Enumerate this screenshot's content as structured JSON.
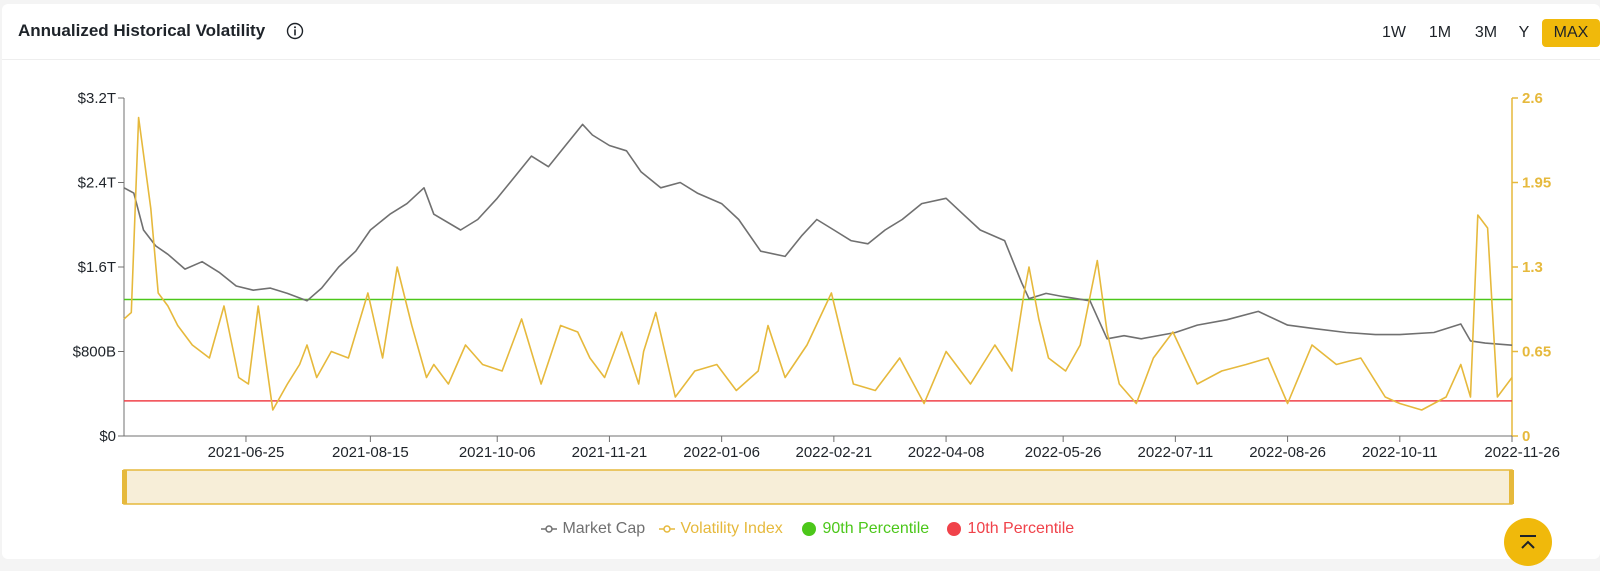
{
  "header": {
    "title": "Annualized Historical Volatility",
    "range_buttons": [
      "1W",
      "1M",
      "3M",
      "Y",
      "MAX"
    ],
    "active_range": "MAX"
  },
  "legend": [
    {
      "label": "Market Cap",
      "color": "#707070"
    },
    {
      "label": "Volatility Index",
      "color": "#e6b93c"
    },
    {
      "label": "90th Percentile",
      "color": "#4cc71a"
    },
    {
      "label": "10th Percentile",
      "color": "#f0424a"
    }
  ],
  "chart_data": {
    "type": "line",
    "x_ticks": [
      "2021-06-25",
      "2021-08-15",
      "2021-10-06",
      "2021-11-21",
      "2022-01-06",
      "2022-02-21",
      "2022-04-08",
      "2022-05-26",
      "2022-07-11",
      "2022-08-26",
      "2022-10-11",
      "2022-11-26"
    ],
    "x_range": [
      "2021-05-06",
      "2022-11-26"
    ],
    "y_left": {
      "ticks": [
        "$0",
        "$800B",
        "$1.6T",
        "$2.4T",
        "$3.2T"
      ],
      "range": [
        0,
        3.2
      ],
      "unit": "trillion USD"
    },
    "y_right": {
      "ticks": [
        "0",
        "0.65",
        "1.3",
        "1.95",
        "2.6"
      ],
      "range": [
        0,
        2.6
      ]
    },
    "thresholds": [
      {
        "name": "90th Percentile",
        "value": 1.05,
        "color": "#4cc71a"
      },
      {
        "name": "10th Percentile",
        "value": 0.27,
        "color": "#f0424a"
      }
    ],
    "series": [
      {
        "name": "Market Cap",
        "axis": "left",
        "color": "#707070",
        "x": [
          "2021-05-06",
          "2021-05-10",
          "2021-05-14",
          "2021-05-19",
          "2021-05-24",
          "2021-05-31",
          "2021-06-07",
          "2021-06-14",
          "2021-06-21",
          "2021-06-28",
          "2021-07-05",
          "2021-07-12",
          "2021-07-20",
          "2021-07-26",
          "2021-08-02",
          "2021-08-09",
          "2021-08-15",
          "2021-08-23",
          "2021-08-30",
          "2021-09-06",
          "2021-09-10",
          "2021-09-21",
          "2021-09-28",
          "2021-10-06",
          "2021-10-13",
          "2021-10-20",
          "2021-10-27",
          "2021-11-03",
          "2021-11-10",
          "2021-11-14",
          "2021-11-21",
          "2021-11-28",
          "2021-12-04",
          "2021-12-12",
          "2021-12-20",
          "2021-12-27",
          "2022-01-06",
          "2022-01-13",
          "2022-01-22",
          "2022-02-01",
          "2022-02-08",
          "2022-02-14",
          "2022-02-21",
          "2022-02-28",
          "2022-03-07",
          "2022-03-14",
          "2022-03-21",
          "2022-03-29",
          "2022-04-08",
          "2022-04-15",
          "2022-04-22",
          "2022-05-02",
          "2022-05-09",
          "2022-05-12",
          "2022-05-19",
          "2022-05-26",
          "2022-06-06",
          "2022-06-13",
          "2022-06-20",
          "2022-06-27",
          "2022-07-11",
          "2022-07-20",
          "2022-08-01",
          "2022-08-14",
          "2022-08-26",
          "2022-09-05",
          "2022-09-19",
          "2022-10-01",
          "2022-10-11",
          "2022-10-25",
          "2022-11-05",
          "2022-11-09",
          "2022-11-15",
          "2022-11-26"
        ],
        "values": [
          2.35,
          2.3,
          1.95,
          1.8,
          1.72,
          1.58,
          1.65,
          1.55,
          1.42,
          1.38,
          1.4,
          1.35,
          1.28,
          1.4,
          1.6,
          1.75,
          1.95,
          2.1,
          2.2,
          2.35,
          2.1,
          1.95,
          2.05,
          2.25,
          2.45,
          2.65,
          2.55,
          2.75,
          2.95,
          2.85,
          2.75,
          2.7,
          2.5,
          2.35,
          2.4,
          2.3,
          2.2,
          2.05,
          1.75,
          1.7,
          1.9,
          2.05,
          1.95,
          1.85,
          1.82,
          1.95,
          2.05,
          2.2,
          2.25,
          2.1,
          1.95,
          1.85,
          1.45,
          1.3,
          1.35,
          1.32,
          1.28,
          0.92,
          0.95,
          0.92,
          0.98,
          1.05,
          1.1,
          1.18,
          1.05,
          1.02,
          0.98,
          0.96,
          0.96,
          0.98,
          1.06,
          0.9,
          0.88,
          0.86
        ]
      },
      {
        "name": "Volatility Index",
        "axis": "right",
        "color": "#e6b93c",
        "x": [
          "2021-05-06",
          "2021-05-09",
          "2021-05-12",
          "2021-05-17",
          "2021-05-20",
          "2021-05-24",
          "2021-05-28",
          "2021-06-03",
          "2021-06-10",
          "2021-06-16",
          "2021-06-22",
          "2021-06-26",
          "2021-06-30",
          "2021-07-06",
          "2021-07-12",
          "2021-07-17",
          "2021-07-20",
          "2021-07-24",
          "2021-07-30",
          "2021-08-06",
          "2021-08-14",
          "2021-08-20",
          "2021-08-26",
          "2021-09-01",
          "2021-09-07",
          "2021-09-10",
          "2021-09-16",
          "2021-09-23",
          "2021-09-30",
          "2021-10-08",
          "2021-10-16",
          "2021-10-24",
          "2021-11-01",
          "2021-11-08",
          "2021-11-13",
          "2021-11-19",
          "2021-11-26",
          "2021-12-03",
          "2021-12-05",
          "2021-12-10",
          "2021-12-18",
          "2021-12-26",
          "2022-01-04",
          "2022-01-12",
          "2022-01-21",
          "2022-01-25",
          "2022-02-01",
          "2022-02-10",
          "2022-02-20",
          "2022-03-01",
          "2022-03-10",
          "2022-03-20",
          "2022-03-30",
          "2022-04-08",
          "2022-04-18",
          "2022-04-28",
          "2022-05-05",
          "2022-05-10",
          "2022-05-12",
          "2022-05-16",
          "2022-05-20",
          "2022-05-27",
          "2022-06-02",
          "2022-06-09",
          "2022-06-13",
          "2022-06-18",
          "2022-06-25",
          "2022-07-02",
          "2022-07-10",
          "2022-07-20",
          "2022-07-30",
          "2022-08-09",
          "2022-08-18",
          "2022-08-26",
          "2022-09-05",
          "2022-09-15",
          "2022-09-25",
          "2022-10-05",
          "2022-10-11",
          "2022-10-20",
          "2022-10-30",
          "2022-11-05",
          "2022-11-09",
          "2022-11-12",
          "2022-11-16",
          "2022-11-20",
          "2022-11-26"
        ],
        "values": [
          0.9,
          0.95,
          2.45,
          1.75,
          1.1,
          1.0,
          0.85,
          0.7,
          0.6,
          1.0,
          0.45,
          0.4,
          1.0,
          0.2,
          0.4,
          0.55,
          0.7,
          0.45,
          0.65,
          0.6,
          1.1,
          0.6,
          1.3,
          0.85,
          0.45,
          0.55,
          0.4,
          0.7,
          0.55,
          0.5,
          0.9,
          0.4,
          0.85,
          0.8,
          0.6,
          0.45,
          0.8,
          0.4,
          0.65,
          0.95,
          0.3,
          0.5,
          0.55,
          0.35,
          0.5,
          0.85,
          0.45,
          0.7,
          1.1,
          0.4,
          0.35,
          0.6,
          0.25,
          0.65,
          0.4,
          0.7,
          0.5,
          1.1,
          1.3,
          0.9,
          0.6,
          0.5,
          0.7,
          1.35,
          0.8,
          0.4,
          0.25,
          0.6,
          0.8,
          0.4,
          0.5,
          0.55,
          0.6,
          0.25,
          0.7,
          0.55,
          0.6,
          0.3,
          0.25,
          0.2,
          0.3,
          0.55,
          0.3,
          1.7,
          1.6,
          0.3,
          0.45
        ]
      }
    ]
  }
}
